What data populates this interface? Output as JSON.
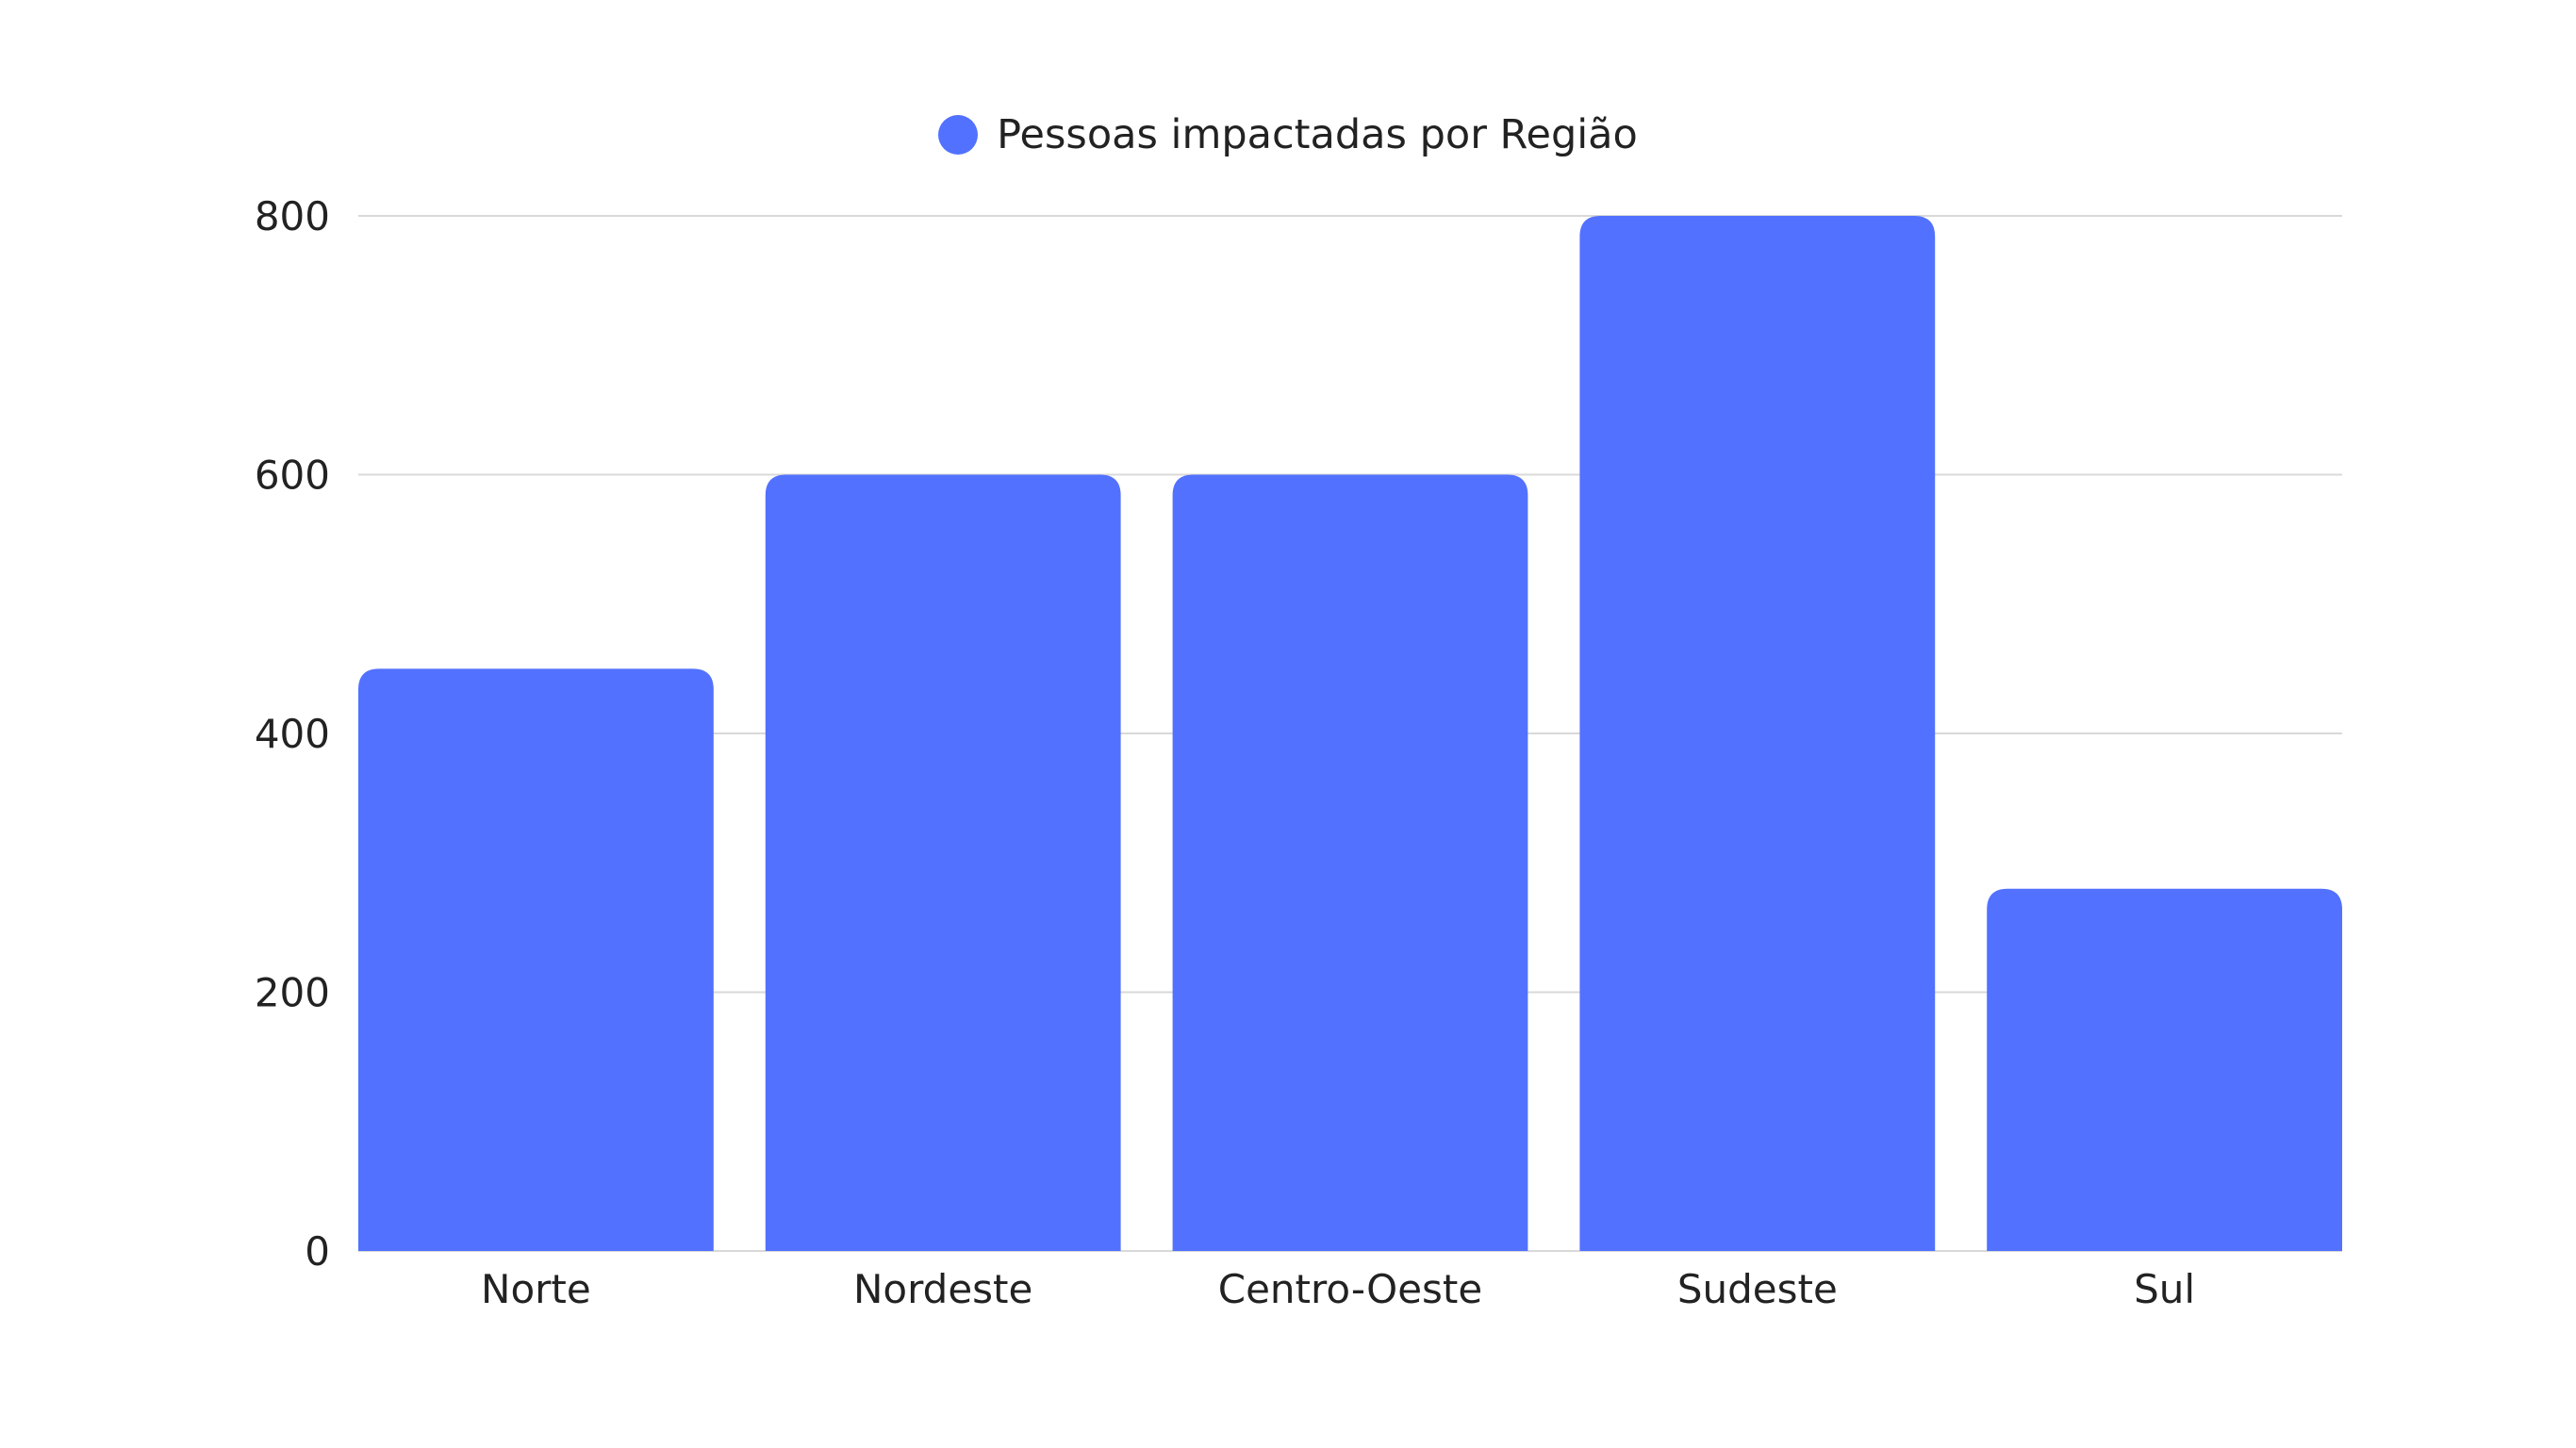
{
  "chart_data": {
    "type": "bar",
    "title": "",
    "xlabel": "",
    "ylabel": "",
    "categories": [
      "Norte",
      "Nordeste",
      "Centro-Oeste",
      "Sudeste",
      "Sul"
    ],
    "series": [
      {
        "name": "Pessoas impactadas por Região",
        "values": [
          450,
          600,
          600,
          800,
          280
        ],
        "color": "#5271ff"
      }
    ],
    "ylim": [
      0,
      800
    ],
    "yticks": [
      0,
      200,
      400,
      600,
      800
    ],
    "ytick_labels": [
      "0",
      "200",
      "400",
      "600",
      "800"
    ],
    "grid": true,
    "legend_position": "top-center",
    "colors": {
      "bar": "#5271ff",
      "grid": "#d9d9d9",
      "text": "#222222"
    }
  }
}
